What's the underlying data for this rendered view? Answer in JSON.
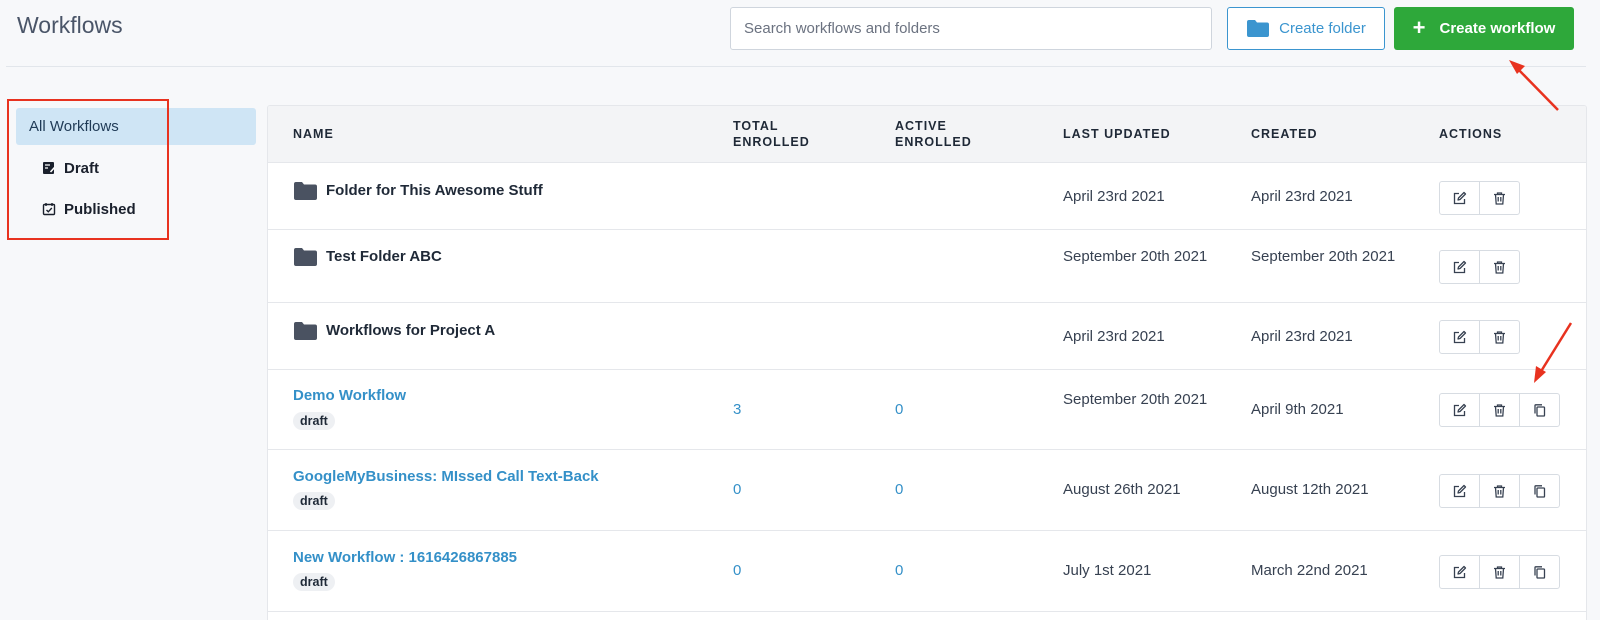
{
  "header": {
    "title": "Workflows",
    "search_placeholder": "Search workflows and folders",
    "create_folder_label": "Create folder",
    "create_workflow_label": "Create workflow",
    "create_workflow_icon": "+"
  },
  "sidebar": {
    "items": [
      {
        "label": "All Workflows",
        "active": true
      },
      {
        "label": "Draft",
        "icon": "draft-icon"
      },
      {
        "label": "Published",
        "icon": "calendar-check-icon"
      }
    ]
  },
  "table": {
    "columns": [
      "NAME",
      "TOTAL\nENROLLED",
      "ACTIVE\nENROLLED",
      "LAST UPDATED",
      "CREATED",
      "ACTIONS"
    ],
    "rows": [
      {
        "type": "folder",
        "name": "Folder for This Awesome Stuff",
        "last_updated": "April 23rd 2021",
        "created": "April 23rd 2021"
      },
      {
        "type": "folder",
        "name": "Test Folder ABC",
        "last_updated": "September 20th 2021",
        "created": "September 20th 2021"
      },
      {
        "type": "folder",
        "name": "Workflows for Project A",
        "last_updated": "April 23rd 2021",
        "created": "April 23rd 2021"
      },
      {
        "type": "workflow",
        "name": "Demo Workflow",
        "status": "draft",
        "total_enrolled": "3",
        "active_enrolled": "0",
        "last_updated": "September 20th 2021",
        "created": "April 9th 2021"
      },
      {
        "type": "workflow",
        "name": "GoogleMyBusiness: MIssed Call Text-Back",
        "status": "draft",
        "total_enrolled": "0",
        "active_enrolled": "0",
        "last_updated": "August 26th 2021",
        "created": "August 12th 2021"
      },
      {
        "type": "workflow",
        "name": "New Workflow : 1616426867885",
        "status": "draft",
        "total_enrolled": "0",
        "active_enrolled": "0",
        "last_updated": "July 1st 2021",
        "created": "March 22nd 2021"
      }
    ]
  },
  "colors": {
    "accent": "#3b95cf",
    "create_button": "#2ea83a",
    "annotation": "#e8321f"
  }
}
